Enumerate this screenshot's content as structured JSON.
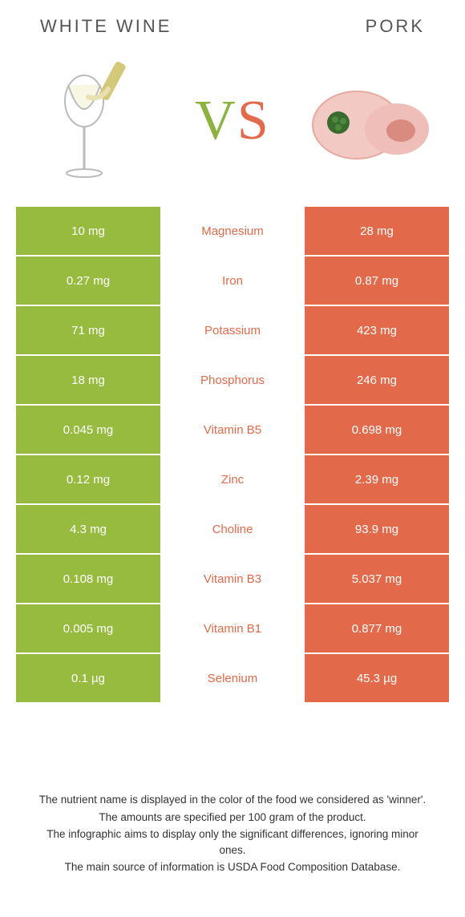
{
  "header": {
    "left_title": "WHITE WINE",
    "right_title": "PORK"
  },
  "vs": {
    "v": "V",
    "s": "S"
  },
  "colors": {
    "left_bg": "#97bb3f",
    "right_bg": "#e2694a",
    "left_text": "#97bb3f",
    "right_text": "#e2694a",
    "cell_text": "#ffffff",
    "background": "#ffffff"
  },
  "comparison": {
    "type": "table",
    "rows": [
      {
        "left": "10 mg",
        "label": "Magnesium",
        "right": "28 mg",
        "winner": "right"
      },
      {
        "left": "0.27 mg",
        "label": "Iron",
        "right": "0.87 mg",
        "winner": "right"
      },
      {
        "left": "71 mg",
        "label": "Potassium",
        "right": "423 mg",
        "winner": "right"
      },
      {
        "left": "18 mg",
        "label": "Phosphorus",
        "right": "246 mg",
        "winner": "right"
      },
      {
        "left": "0.045 mg",
        "label": "Vitamin B5",
        "right": "0.698 mg",
        "winner": "right"
      },
      {
        "left": "0.12 mg",
        "label": "Zinc",
        "right": "2.39 mg",
        "winner": "right"
      },
      {
        "left": "4.3 mg",
        "label": "Choline",
        "right": "93.9 mg",
        "winner": "right"
      },
      {
        "left": "0.108 mg",
        "label": "Vitamin B3",
        "right": "5.037 mg",
        "winner": "right"
      },
      {
        "left": "0.005 mg",
        "label": "Vitamin B1",
        "right": "0.877 mg",
        "winner": "right"
      },
      {
        "left": "0.1 µg",
        "label": "Selenium",
        "right": "45.3 µg",
        "winner": "right"
      }
    ]
  },
  "footer": {
    "line1": "The nutrient name is displayed in the color of the food we considered as 'winner'.",
    "line2": "The amounts are specified per 100 gram of the product.",
    "line3": "The infographic aims to display only the significant differences, ignoring minor ones.",
    "line4": "The main source of information is USDA Food Composition Database."
  }
}
